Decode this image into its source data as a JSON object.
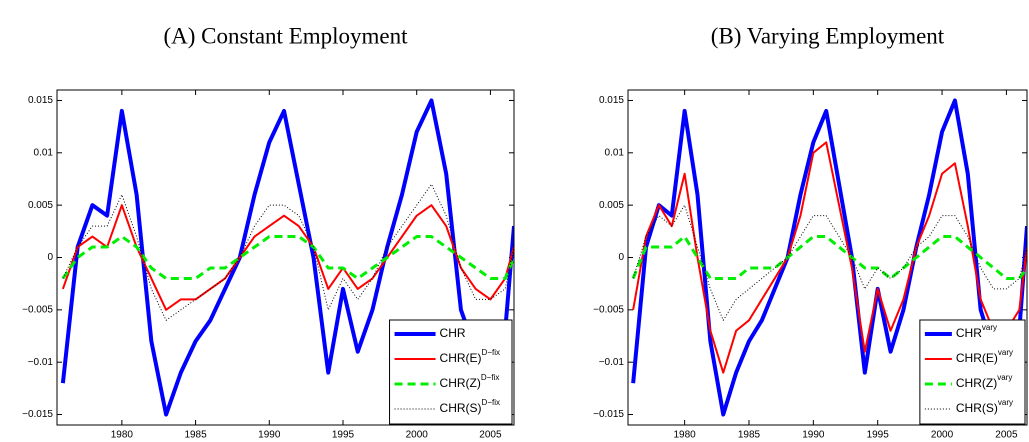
{
  "chart_data": [
    {
      "type": "line",
      "title": "(A) Constant Employment",
      "x": [
        1976,
        1977,
        1978,
        1979,
        1980,
        1981,
        1982,
        1983,
        1984,
        1985,
        1986,
        1987,
        1988,
        1989,
        1990,
        1991,
        1992,
        1993,
        1994,
        1995,
        1996,
        1997,
        1998,
        1999,
        2000,
        2001,
        2002,
        2003,
        2004,
        2005,
        2006,
        2006.6
      ],
      "xlim": [
        1975.6,
        2006.6
      ],
      "xticks": [
        1980,
        1985,
        1990,
        1995,
        2000,
        2005
      ],
      "ylim": [
        -0.016,
        0.016
      ],
      "yticks": [
        {
          "value": -0.015,
          "label": "−0.015"
        },
        {
          "value": -0.01,
          "label": "−0.01"
        },
        {
          "value": -0.005,
          "label": "−0.005"
        },
        0,
        0.005,
        0.01,
        0.015
      ],
      "legend": "lower right",
      "series": [
        {
          "name": "CHR",
          "color": "#0000ff",
          "line_style": "solid",
          "line_width": 4,
          "values": [
            -0.012,
            0.001,
            0.005,
            0.004,
            0.014,
            0.006,
            -0.008,
            -0.015,
            -0.011,
            -0.008,
            -0.006,
            -0.003,
            0,
            0.006,
            0.011,
            0.014,
            0.007,
            0,
            -0.011,
            -0.003,
            -0.009,
            -0.005,
            0.001,
            0.006,
            0.012,
            0.015,
            0.008,
            -0.005,
            -0.009,
            -0.01,
            -0.007,
            0.003
          ]
        },
        {
          "name": "CHR(E)",
          "superscript": "D−fix",
          "color": "#ff0000",
          "line_style": "solid",
          "line_width": 2,
          "values": [
            -0.003,
            0.001,
            0.002,
            0.001,
            0.005,
            0.001,
            -0.002,
            -0.005,
            -0.004,
            -0.004,
            -0.003,
            -0.002,
            0,
            0.002,
            0.003,
            0.004,
            0.003,
            0.001,
            -0.003,
            -0.001,
            -0.003,
            -0.002,
            0,
            0.002,
            0.004,
            0.005,
            0.003,
            -0.001,
            -0.003,
            -0.004,
            -0.002,
            0.001
          ]
        },
        {
          "name": "CHR(Z)",
          "superscript": "D−fix",
          "color": "#00ee00",
          "line_style": "dashed",
          "line_width": 3,
          "values": [
            -0.002,
            0,
            0.001,
            0.001,
            0.002,
            0.001,
            -0.001,
            -0.002,
            -0.002,
            -0.002,
            -0.001,
            -0.001,
            0,
            0.001,
            0.002,
            0.002,
            0.002,
            0.001,
            -0.001,
            -0.001,
            -0.002,
            -0.001,
            0,
            0.001,
            0.002,
            0.002,
            0.001,
            0,
            -0.001,
            -0.002,
            -0.002,
            0
          ]
        },
        {
          "name": "CHR(S)",
          "superscript": "D−fix",
          "color": "#000000",
          "line_style": "dotted",
          "line_width": 1,
          "values": [
            -0.002,
            0.001,
            0.003,
            0.003,
            0.006,
            0.002,
            -0.003,
            -0.006,
            -0.005,
            -0.004,
            -0.003,
            -0.002,
            0,
            0.003,
            0.005,
            0.005,
            0.004,
            0.001,
            -0.005,
            -0.002,
            -0.004,
            -0.002,
            0.001,
            0.003,
            0.005,
            0.007,
            0.004,
            -0.001,
            -0.004,
            -0.004,
            -0.003,
            0.001
          ]
        }
      ]
    },
    {
      "type": "line",
      "title": "(B) Varying Employment",
      "x": [
        1976,
        1977,
        1978,
        1979,
        1980,
        1981,
        1982,
        1983,
        1984,
        1985,
        1986,
        1987,
        1988,
        1989,
        1990,
        1991,
        1992,
        1993,
        1994,
        1995,
        1996,
        1997,
        1998,
        1999,
        2000,
        2001,
        2002,
        2003,
        2004,
        2005,
        2006,
        2006.6
      ],
      "xlim": [
        1975.6,
        2006.6
      ],
      "xticks": [
        1980,
        1985,
        1990,
        1995,
        2000,
        2005
      ],
      "ylim": [
        -0.016,
        0.016
      ],
      "yticks": [
        {
          "value": -0.015,
          "label": "−0.015"
        },
        {
          "value": -0.01,
          "label": "−0.01"
        },
        {
          "value": -0.005,
          "label": "−0.005"
        },
        0,
        0.005,
        0.01,
        0.015
      ],
      "legend": "lower right",
      "series": [
        {
          "name": "CHR",
          "superscript": "vary",
          "color": "#0000ff",
          "line_style": "solid",
          "line_width": 4,
          "values": [
            -0.012,
            0.001,
            0.005,
            0.004,
            0.014,
            0.006,
            -0.008,
            -0.015,
            -0.011,
            -0.008,
            -0.006,
            -0.003,
            0,
            0.006,
            0.011,
            0.014,
            0.007,
            0,
            -0.011,
            -0.003,
            -0.009,
            -0.005,
            0.001,
            0.006,
            0.012,
            0.015,
            0.008,
            -0.005,
            -0.009,
            -0.01,
            -0.007,
            0.003
          ]
        },
        {
          "name": "CHR(E)",
          "superscript": "vary",
          "color": "#ff0000",
          "line_style": "solid",
          "line_width": 2,
          "values": [
            -0.005,
            0.002,
            0.005,
            0.003,
            0.008,
            0,
            -0.007,
            -0.011,
            -0.007,
            -0.006,
            -0.004,
            -0.002,
            0,
            0.004,
            0.01,
            0.011,
            0.005,
            -0.001,
            -0.009,
            -0.003,
            -0.007,
            -0.004,
            0.001,
            0.004,
            0.008,
            0.009,
            0.003,
            -0.004,
            -0.007,
            -0.007,
            -0.005,
            0.001
          ]
        },
        {
          "name": "CHR(Z)",
          "superscript": "vary",
          "color": "#00ee00",
          "line_style": "dashed",
          "line_width": 3,
          "values": [
            -0.002,
            0.001,
            0.001,
            0.001,
            0.002,
            0,
            -0.002,
            -0.002,
            -0.002,
            -0.001,
            -0.001,
            -0.001,
            0,
            0.001,
            0.002,
            0.002,
            0.001,
            0,
            -0.001,
            -0.001,
            -0.002,
            -0.001,
            0,
            0.001,
            0.002,
            0.002,
            0.001,
            0,
            -0.001,
            -0.002,
            -0.002,
            -0.001
          ]
        },
        {
          "name": "CHR(S)",
          "superscript": "vary",
          "color": "#000000",
          "line_style": "dotted",
          "line_width": 1,
          "values": [
            -0.002,
            0.002,
            0.004,
            0.003,
            0.005,
            0.001,
            -0.003,
            -0.006,
            -0.004,
            -0.003,
            -0.002,
            -0.001,
            0,
            0.002,
            0.004,
            0.004,
            0.002,
            0,
            -0.003,
            -0.001,
            -0.002,
            -0.001,
            0.001,
            0.002,
            0.004,
            0.004,
            0.002,
            -0.001,
            -0.003,
            -0.003,
            -0.002,
            0.001
          ]
        }
      ]
    }
  ]
}
